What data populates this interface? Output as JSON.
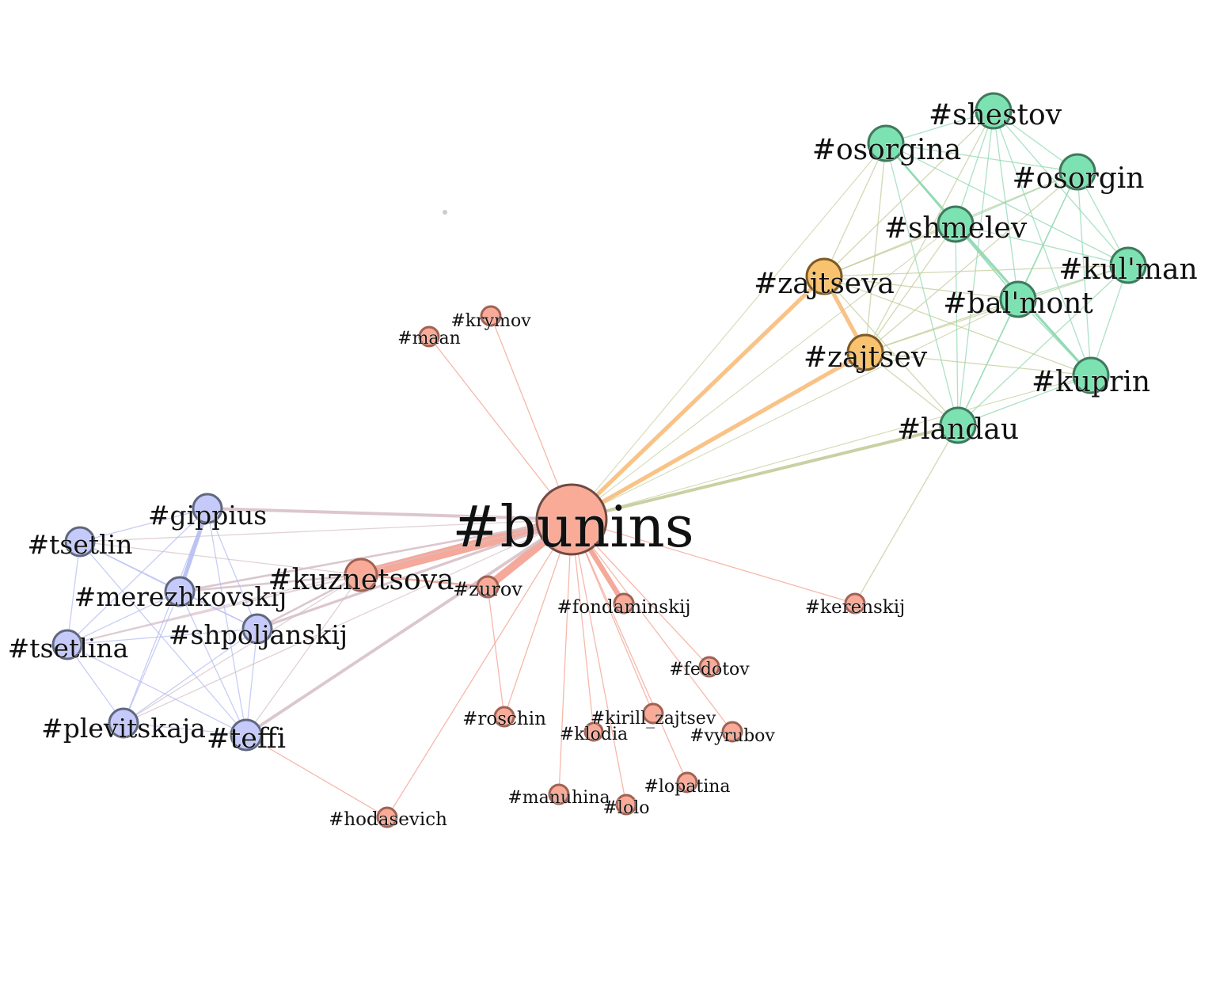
{
  "graph": {
    "colors": {
      "red": "#f9ab98",
      "red_stroke": "#a06255",
      "blue": "#c5cafa",
      "blue_stroke": "#5f6880",
      "green": "#7de2b2",
      "green_stroke": "#3e7a5c",
      "orange": "#f9c26e",
      "orange_stroke": "#7e5a24",
      "center_stroke": "#6f4a42",
      "edge_red": "#f3a08f",
      "edge_blue": "#b6bdf2",
      "edge_green": "#8fd8b2",
      "edge_mixed": "#d7c1c8",
      "edge_olive": "#c2cc98",
      "edge_orange": "#f8bd7a"
    },
    "nodes": [
      {
        "id": "bunins",
        "label": "#bunins",
        "group": "red"
      },
      {
        "id": "kuznetsova",
        "label": "#kuznetsova",
        "group": "red"
      },
      {
        "id": "zurov",
        "label": "#zurov",
        "group": "red"
      },
      {
        "id": "fondaminskij",
        "label": "#fondaminskij",
        "group": "red"
      },
      {
        "id": "kerenskij",
        "label": "#kerenskij",
        "group": "red"
      },
      {
        "id": "krymov",
        "label": "#krymov",
        "group": "red"
      },
      {
        "id": "maan",
        "label": "#maan",
        "group": "red"
      },
      {
        "id": "fedotov",
        "label": "#fedotov",
        "group": "red"
      },
      {
        "id": "roschin",
        "label": "#roschin",
        "group": "red"
      },
      {
        "id": "kirill_zajtsev",
        "label": "#kirill_zajtsev",
        "group": "red"
      },
      {
        "id": "klodia",
        "label": "#klodia",
        "group": "red"
      },
      {
        "id": "vyrubov",
        "label": "#vyrubov",
        "group": "red"
      },
      {
        "id": "lopatina",
        "label": "#lopatina",
        "group": "red"
      },
      {
        "id": "manuhina",
        "label": "#manuhina",
        "group": "red"
      },
      {
        "id": "lolo",
        "label": "#lolo",
        "group": "red"
      },
      {
        "id": "hodasevich",
        "label": "#hodasevich",
        "group": "red"
      },
      {
        "id": "gippius",
        "label": "#gippius",
        "group": "blue"
      },
      {
        "id": "tsetlin",
        "label": "#tsetlin",
        "group": "blue"
      },
      {
        "id": "merezhkovskij",
        "label": "#merezhkovskij",
        "group": "blue"
      },
      {
        "id": "shpoljanskij",
        "label": "#shpoljanskij",
        "group": "blue"
      },
      {
        "id": "tsetlina",
        "label": "#tsetlina",
        "group": "blue"
      },
      {
        "id": "plevitskaja",
        "label": "#plevitskaja",
        "group": "blue"
      },
      {
        "id": "teffi",
        "label": "#teffi",
        "group": "blue"
      },
      {
        "id": "shestov",
        "label": "#shestov",
        "group": "green"
      },
      {
        "id": "osorgina",
        "label": "#osorgina",
        "group": "green"
      },
      {
        "id": "osorgin",
        "label": "#osorgin",
        "group": "green"
      },
      {
        "id": "shmelev",
        "label": "#shmelev",
        "group": "green"
      },
      {
        "id": "kulman",
        "label": "#kul'man",
        "group": "green"
      },
      {
        "id": "balmont",
        "label": "#bal'mont",
        "group": "green"
      },
      {
        "id": "kuprin",
        "label": "#kuprin",
        "group": "green"
      },
      {
        "id": "landau",
        "label": "#landau",
        "group": "green"
      },
      {
        "id": "zajtseva",
        "label": "#zajtseva",
        "group": "orange"
      },
      {
        "id": "zajtsev",
        "label": "#zajtsev",
        "group": "orange"
      }
    ],
    "edges": [
      {
        "source": "bunins",
        "target": "kuznetsova",
        "weight": 10,
        "color": "edge_red"
      },
      {
        "source": "bunins",
        "target": "zurov",
        "weight": 8,
        "color": "edge_red"
      },
      {
        "source": "bunins",
        "target": "fondaminskij",
        "weight": 5,
        "color": "edge_red"
      },
      {
        "source": "bunins",
        "target": "zajtseva",
        "weight": 4,
        "color": "edge_orange"
      },
      {
        "source": "bunins",
        "target": "zajtsev",
        "weight": 4,
        "color": "edge_orange"
      },
      {
        "source": "bunins",
        "target": "landau",
        "weight": 3,
        "color": "edge_olive"
      },
      {
        "source": "bunins",
        "target": "gippius",
        "weight": 3,
        "color": "edge_mixed"
      },
      {
        "source": "bunins",
        "target": "teffi",
        "weight": 3,
        "color": "edge_mixed"
      },
      {
        "source": "bunins",
        "target": "shpoljanskij",
        "weight": 2.5,
        "color": "edge_mixed"
      },
      {
        "source": "bunins",
        "target": "merezhkovskij",
        "weight": 2,
        "color": "edge_mixed"
      },
      {
        "source": "bunins",
        "target": "tsetlin",
        "weight": 1,
        "color": "edge_mixed"
      },
      {
        "source": "bunins",
        "target": "tsetlina",
        "weight": 1,
        "color": "edge_mixed"
      },
      {
        "source": "bunins",
        "target": "plevitskaja",
        "weight": 1,
        "color": "edge_mixed"
      },
      {
        "source": "bunins",
        "target": "kerenskij",
        "weight": 1,
        "color": "edge_red"
      },
      {
        "source": "bunins",
        "target": "krymov",
        "weight": 1,
        "color": "edge_red"
      },
      {
        "source": "bunins",
        "target": "maan",
        "weight": 1,
        "color": "edge_red"
      },
      {
        "source": "bunins",
        "target": "fedotov",
        "weight": 1,
        "color": "edge_red"
      },
      {
        "source": "bunins",
        "target": "roschin",
        "weight": 1,
        "color": "edge_red"
      },
      {
        "source": "bunins",
        "target": "kirill_zajtsev",
        "weight": 1,
        "color": "edge_red"
      },
      {
        "source": "bunins",
        "target": "klodia",
        "weight": 1,
        "color": "edge_red"
      },
      {
        "source": "bunins",
        "target": "vyrubov",
        "weight": 1,
        "color": "edge_red"
      },
      {
        "source": "bunins",
        "target": "lopatina",
        "weight": 1,
        "color": "edge_red"
      },
      {
        "source": "bunins",
        "target": "manuhina",
        "weight": 1,
        "color": "edge_red"
      },
      {
        "source": "bunins",
        "target": "lolo",
        "weight": 1,
        "color": "edge_red"
      },
      {
        "source": "bunins",
        "target": "hodasevich",
        "weight": 1,
        "color": "edge_red"
      },
      {
        "source": "bunins",
        "target": "osorgina",
        "weight": 0.8,
        "color": "edge_olive"
      },
      {
        "source": "bunins",
        "target": "shmelev",
        "weight": 0.8,
        "color": "edge_olive"
      },
      {
        "source": "bunins",
        "target": "balmont",
        "weight": 0.8,
        "color": "edge_olive"
      },
      {
        "source": "bunins",
        "target": "kuprin",
        "weight": 0.8,
        "color": "edge_olive"
      },
      {
        "source": "zajtseva",
        "target": "zajtsev",
        "weight": 4,
        "color": "edge_orange"
      },
      {
        "source": "zurov",
        "target": "roschin",
        "weight": 1,
        "color": "edge_red"
      },
      {
        "source": "kuznetsova",
        "target": "merezhkovskij",
        "weight": 2,
        "color": "edge_mixed"
      },
      {
        "source": "kuznetsova",
        "target": "shpoljanskij",
        "weight": 2,
        "color": "edge_mixed"
      },
      {
        "source": "kuznetsova",
        "target": "tsetlina",
        "weight": 1.5,
        "color": "edge_mixed"
      },
      {
        "source": "kuznetsova",
        "target": "plevitskaja",
        "weight": 1,
        "color": "edge_mixed"
      },
      {
        "source": "kuznetsova",
        "target": "teffi",
        "weight": 1,
        "color": "edge_mixed"
      },
      {
        "source": "kuznetsova",
        "target": "tsetlin",
        "weight": 1,
        "color": "edge_mixed"
      },
      {
        "source": "kuznetsova",
        "target": "zurov",
        "weight": 2,
        "color": "edge_red"
      },
      {
        "source": "teffi",
        "target": "hodasevich",
        "weight": 1,
        "color": "edge_red"
      },
      {
        "source": "landau",
        "target": "kerenskij",
        "weight": 1,
        "color": "edge_olive"
      },
      {
        "source": "gippius",
        "target": "merezhkovskij",
        "weight": 4,
        "color": "edge_blue"
      },
      {
        "source": "gippius",
        "target": "tsetlin",
        "weight": 1,
        "color": "edge_blue"
      },
      {
        "source": "gippius",
        "target": "tsetlina",
        "weight": 1,
        "color": "edge_blue"
      },
      {
        "source": "gippius",
        "target": "shpoljanskij",
        "weight": 1,
        "color": "edge_blue"
      },
      {
        "source": "gippius",
        "target": "plevitskaja",
        "weight": 1,
        "color": "edge_blue"
      },
      {
        "source": "gippius",
        "target": "teffi",
        "weight": 1,
        "color": "edge_blue"
      },
      {
        "source": "tsetlin",
        "target": "merezhkovskij",
        "weight": 1,
        "color": "edge_blue"
      },
      {
        "source": "tsetlin",
        "target": "tsetlina",
        "weight": 1,
        "color": "edge_blue"
      },
      {
        "source": "tsetlin",
        "target": "shpoljanskij",
        "weight": 1,
        "color": "edge_blue"
      },
      {
        "source": "tsetlin",
        "target": "teffi",
        "weight": 1,
        "color": "edge_blue"
      },
      {
        "source": "merezhkovskij",
        "target": "tsetlina",
        "weight": 1,
        "color": "edge_blue"
      },
      {
        "source": "merezhkovskij",
        "target": "plevitskaja",
        "weight": 1,
        "color": "edge_blue"
      },
      {
        "source": "merezhkovskij",
        "target": "teffi",
        "weight": 1,
        "color": "edge_blue"
      },
      {
        "source": "merezhkovskij",
        "target": "shpoljanskij",
        "weight": 1,
        "color": "edge_blue"
      },
      {
        "source": "shpoljanskij",
        "target": "tsetlina",
        "weight": 1,
        "color": "edge_blue"
      },
      {
        "source": "shpoljanskij",
        "target": "plevitskaja",
        "weight": 1,
        "color": "edge_blue"
      },
      {
        "source": "shpoljanskij",
        "target": "teffi",
        "weight": 1,
        "color": "edge_blue"
      },
      {
        "source": "tsetlina",
        "target": "plevitskaja",
        "weight": 1,
        "color": "edge_blue"
      },
      {
        "source": "tsetlina",
        "target": "teffi",
        "weight": 1,
        "color": "edge_blue"
      },
      {
        "source": "plevitskaja",
        "target": "teffi",
        "weight": 1,
        "color": "edge_blue"
      },
      {
        "source": "shmelev",
        "target": "kuprin",
        "weight": 2.5,
        "color": "edge_green"
      },
      {
        "source": "osorgina",
        "target": "shmelev",
        "weight": 2,
        "color": "edge_green"
      },
      {
        "source": "shestov",
        "target": "osorgina",
        "weight": 1,
        "color": "edge_green"
      },
      {
        "source": "shestov",
        "target": "osorgin",
        "weight": 1,
        "color": "edge_green"
      },
      {
        "source": "shestov",
        "target": "shmelev",
        "weight": 1,
        "color": "edge_green"
      },
      {
        "source": "shestov",
        "target": "kulman",
        "weight": 1,
        "color": "edge_green"
      },
      {
        "source": "shestov",
        "target": "balmont",
        "weight": 1,
        "color": "edge_green"
      },
      {
        "source": "shestov",
        "target": "kuprin",
        "weight": 1,
        "color": "edge_green"
      },
      {
        "source": "shestov",
        "target": "landau",
        "weight": 1,
        "color": "edge_green"
      },
      {
        "source": "osorgina",
        "target": "osorgin",
        "weight": 1,
        "color": "edge_green"
      },
      {
        "source": "osorgina",
        "target": "kulman",
        "weight": 1,
        "color": "edge_green"
      },
      {
        "source": "osorgina",
        "target": "balmont",
        "weight": 1,
        "color": "edge_green"
      },
      {
        "source": "osorgina",
        "target": "kuprin",
        "weight": 1,
        "color": "edge_green"
      },
      {
        "source": "osorgina",
        "target": "landau",
        "weight": 1,
        "color": "edge_green"
      },
      {
        "source": "osorgin",
        "target": "shmelev",
        "weight": 1,
        "color": "edge_green"
      },
      {
        "source": "osorgin",
        "target": "kulman",
        "weight": 1,
        "color": "edge_green"
      },
      {
        "source": "osorgin",
        "target": "balmont",
        "weight": 1,
        "color": "edge_green"
      },
      {
        "source": "osorgin",
        "target": "kuprin",
        "weight": 1,
        "color": "edge_green"
      },
      {
        "source": "osorgin",
        "target": "landau",
        "weight": 1,
        "color": "edge_green"
      },
      {
        "source": "shmelev",
        "target": "kulman",
        "weight": 1,
        "color": "edge_green"
      },
      {
        "source": "shmelev",
        "target": "balmont",
        "weight": 1,
        "color": "edge_green"
      },
      {
        "source": "shmelev",
        "target": "landau",
        "weight": 1,
        "color": "edge_green"
      },
      {
        "source": "kulman",
        "target": "balmont",
        "weight": 1,
        "color": "edge_green"
      },
      {
        "source": "kulman",
        "target": "kuprin",
        "weight": 1,
        "color": "edge_green"
      },
      {
        "source": "kulman",
        "target": "landau",
        "weight": 1,
        "color": "edge_green"
      },
      {
        "source": "balmont",
        "target": "kuprin",
        "weight": 1,
        "color": "edge_green"
      },
      {
        "source": "balmont",
        "target": "landau",
        "weight": 1,
        "color": "edge_green"
      },
      {
        "source": "kuprin",
        "target": "landau",
        "weight": 1,
        "color": "edge_green"
      },
      {
        "source": "zajtseva",
        "target": "shestov",
        "weight": 1,
        "color": "edge_olive"
      },
      {
        "source": "zajtseva",
        "target": "osorgina",
        "weight": 1,
        "color": "edge_olive"
      },
      {
        "source": "zajtseva",
        "target": "osorgin",
        "weight": 1,
        "color": "edge_olive"
      },
      {
        "source": "zajtseva",
        "target": "shmelev",
        "weight": 1,
        "color": "edge_olive"
      },
      {
        "source": "zajtseva",
        "target": "kulman",
        "weight": 1,
        "color": "edge_olive"
      },
      {
        "source": "zajtseva",
        "target": "balmont",
        "weight": 1,
        "color": "edge_olive"
      },
      {
        "source": "zajtseva",
        "target": "kuprin",
        "weight": 1,
        "color": "edge_olive"
      },
      {
        "source": "zajtseva",
        "target": "landau",
        "weight": 1,
        "color": "edge_olive"
      },
      {
        "source": "zajtsev",
        "target": "shestov",
        "weight": 1,
        "color": "edge_olive"
      },
      {
        "source": "zajtsev",
        "target": "osorgina",
        "weight": 1,
        "color": "edge_olive"
      },
      {
        "source": "zajtsev",
        "target": "osorgin",
        "weight": 1,
        "color": "edge_olive"
      },
      {
        "source": "zajtsev",
        "target": "shmelev",
        "weight": 1,
        "color": "edge_olive"
      },
      {
        "source": "zajtsev",
        "target": "kulman",
        "weight": 1,
        "color": "edge_olive"
      },
      {
        "source": "zajtsev",
        "target": "balmont",
        "weight": 1,
        "color": "edge_olive"
      },
      {
        "source": "zajtsev",
        "target": "kuprin",
        "weight": 1,
        "color": "edge_olive"
      },
      {
        "source": "zajtsev",
        "target": "landau",
        "weight": 1,
        "color": "edge_olive"
      }
    ]
  }
}
